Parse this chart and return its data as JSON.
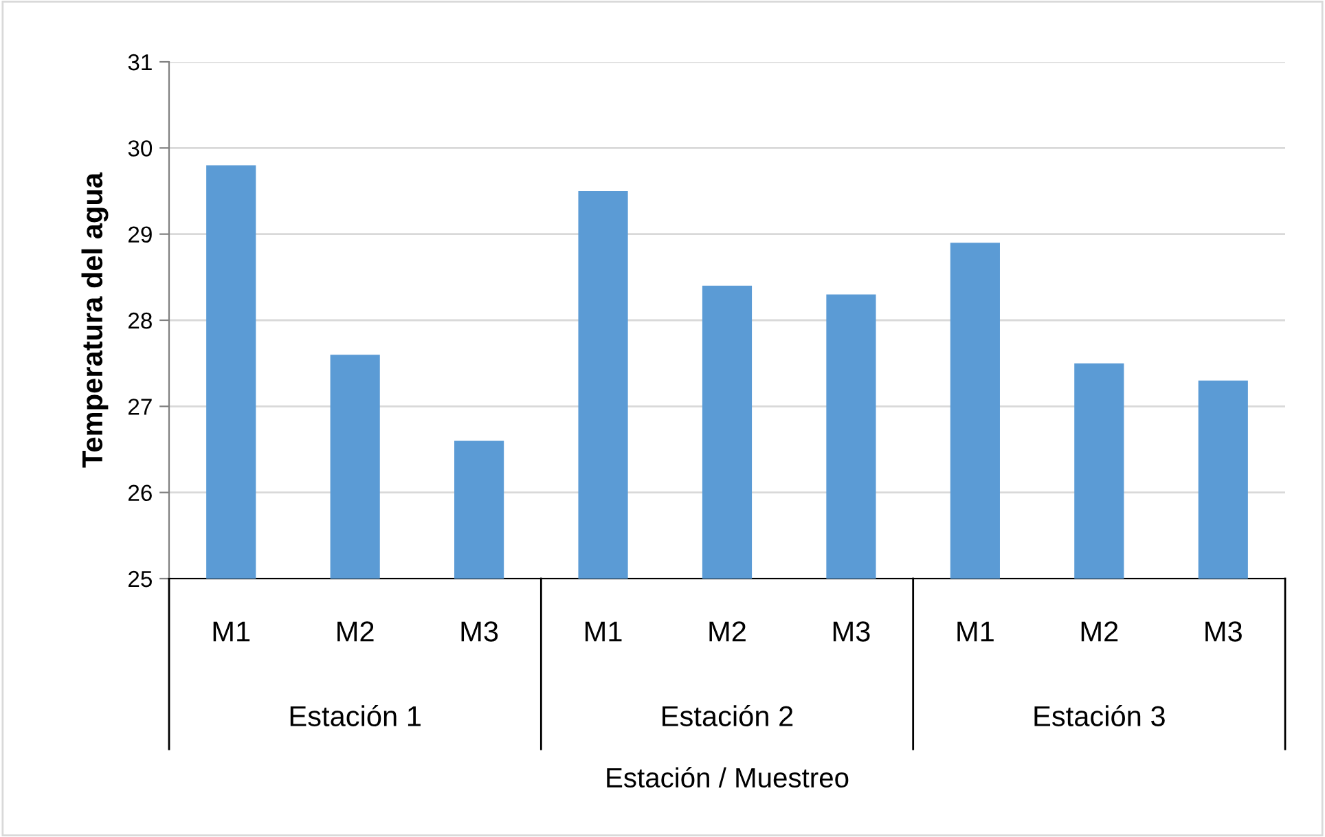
{
  "chart_data": {
    "type": "bar",
    "ylabel": "Temperatura del agua",
    "xlabel": "Estación / Muestreo",
    "categories": [
      "M1",
      "M2",
      "M3",
      "M1",
      "M2",
      "M3",
      "M1",
      "M2",
      "M3"
    ],
    "values": [
      29.8,
      27.6,
      26.6,
      29.5,
      28.4,
      28.3,
      28.9,
      27.5,
      27.3
    ],
    "color": "#5b9bd5",
    "annotations": [
      "Estación 1",
      "Estación 2",
      "Estación 3"
    ],
    "ylim": [
      25,
      31
    ],
    "yticks": [
      25,
      26,
      27,
      28,
      29,
      30,
      31
    ],
    "grid": "y",
    "legend": false
  }
}
